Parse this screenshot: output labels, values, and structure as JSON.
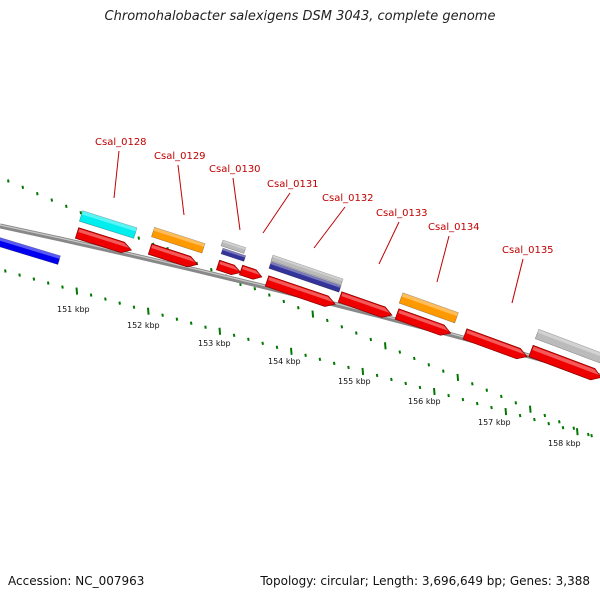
{
  "title": "Chromohalobacter salexigens DSM 3043, complete genome",
  "footer": {
    "accession": "Accession: NC_007963",
    "topology": "Topology: circular; Length: 3,696,649 bp; Genes: 3,388"
  },
  "colors": {
    "cds_red": "#ee0000",
    "orange": "#ff9900",
    "cyan": "#00eeee",
    "blue": "#0000ee",
    "navy": "#333399",
    "grey": "#bbbbbb",
    "tick_green": "#007700",
    "label_red": "#c00000"
  },
  "genes": [
    {
      "id": "Csal_0128"
    },
    {
      "id": "Csal_0129"
    },
    {
      "id": "Csal_0130"
    },
    {
      "id": "Csal_0131"
    },
    {
      "id": "Csal_0132"
    },
    {
      "id": "Csal_0133"
    },
    {
      "id": "Csal_0134"
    },
    {
      "id": "Csal_0135"
    }
  ],
  "scale": [
    {
      "label": "151 kbp"
    },
    {
      "label": "152 kbp"
    },
    {
      "label": "153 kbp"
    },
    {
      "label": "154 kbp"
    },
    {
      "label": "155 kbp"
    },
    {
      "label": "156 kbp"
    },
    {
      "label": "157 kbp"
    },
    {
      "label": "158 kbp"
    }
  ]
}
